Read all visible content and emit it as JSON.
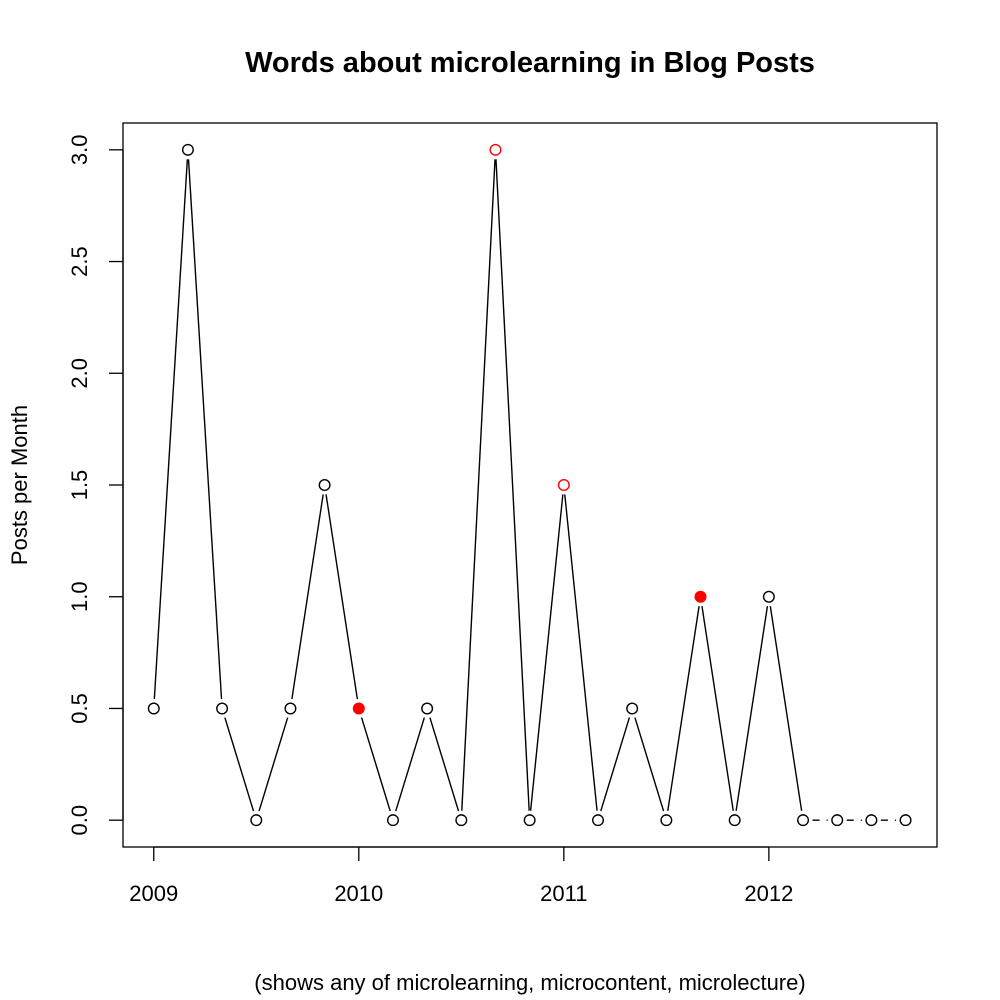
{
  "chart_data": {
    "type": "line",
    "title": "Words about microlearning in Blog Posts",
    "xlabel": "(shows any of microlearning, microcontent, microlecture)",
    "ylabel": "Posts per Month",
    "x_ticks": [
      "2009",
      "2010",
      "2011",
      "2012"
    ],
    "y_ticks": [
      "0.0",
      "0.5",
      "1.0",
      "1.5",
      "2.0",
      "2.5",
      "3.0"
    ],
    "xlim": [
      2008.85,
      2012.82
    ],
    "ylim": [
      -0.12,
      3.12
    ],
    "grid": false,
    "series": [
      {
        "x": [
          2009.0,
          2009.1667,
          2009.3333,
          2009.5,
          2009.6667,
          2009.8333,
          2010.0,
          2010.1667,
          2010.3333,
          2010.5,
          2010.6667,
          2010.8333,
          2011.0,
          2011.1667,
          2011.3333,
          2011.5,
          2011.6667,
          2011.8333,
          2012.0,
          2012.1667,
          2012.3333,
          2012.5,
          2012.6667
        ],
        "values": [
          0.5,
          3.0,
          0.5,
          0.0,
          0.5,
          1.5,
          0.5,
          0.0,
          0.5,
          0.0,
          3.0,
          0.0,
          1.5,
          0.0,
          0.5,
          0.0,
          1.0,
          0.0,
          1.0,
          0.0,
          0.0,
          0.0,
          0.0
        ],
        "point_style": [
          "open",
          "open",
          "open",
          "open",
          "open",
          "open",
          "filled-red",
          "open",
          "open",
          "open",
          "open-red",
          "open",
          "open-red",
          "open",
          "open",
          "open",
          "filled-red",
          "open",
          "open",
          "open",
          "open",
          "open",
          "open"
        ],
        "line_style": [
          "solid",
          "solid",
          "solid",
          "solid",
          "solid",
          "solid",
          "solid",
          "solid",
          "solid",
          "solid",
          "solid",
          "solid",
          "solid",
          "solid",
          "solid",
          "solid",
          "solid",
          "solid",
          "solid",
          "dashed",
          "dashed",
          "dashed"
        ]
      }
    ],
    "colors": {
      "line": "#000000",
      "highlight": "#ff0000"
    }
  }
}
